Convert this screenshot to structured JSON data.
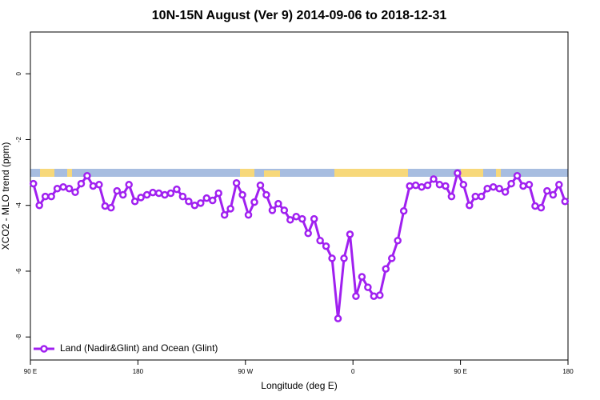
{
  "chart_data": {
    "type": "line",
    "title": "10N-15N August (Ver 9)   2014-09-06 to 2018-12-31",
    "x_label": "Longitude (deg E)",
    "y_label": "XCO2 - MLO trend (ppm)",
    "x": [
      92.5,
      97.5,
      102.5,
      107.5,
      112.5,
      117.5,
      122.5,
      127.5,
      132.5,
      137.5,
      142.5,
      147.5,
      152.5,
      157.5,
      162.5,
      167.5,
      172.5,
      177.5,
      182.5,
      187.5,
      192.5,
      197.5,
      202.5,
      207.5,
      212.5,
      217.5,
      222.5,
      227.5,
      232.5,
      237.5,
      242.5,
      247.5,
      252.5,
      257.5,
      262.5,
      267.5,
      272.5,
      277.5,
      282.5,
      287.5,
      292.5,
      297.5,
      302.5,
      307.5,
      312.5,
      317.5,
      322.5,
      327.5,
      332.5,
      337.5,
      342.5,
      347.5,
      352.5,
      357.5,
      362.5,
      367.5,
      372.5,
      377.5,
      382.5,
      387.5,
      392.5,
      397.5,
      402.5,
      407.5,
      412.5,
      417.5,
      422.5,
      427.5,
      432.5,
      437.5,
      442.5,
      447.5,
      452.5,
      457.5,
      462.5,
      467.5,
      472.5,
      477.5,
      482.5,
      487.5,
      492.5,
      497.5,
      502.5,
      507.5,
      512.5,
      517.5,
      522.5,
      527.5,
      532.5,
      537.5
    ],
    "series": [
      {
        "name": "Land (Nadir&Glint) and Ocean (Glint)",
        "color": "#a020f0",
        "values": [
          -3.34,
          -4.0,
          -3.73,
          -3.73,
          -3.49,
          -3.44,
          -3.49,
          -3.6,
          -3.34,
          -3.1,
          -3.41,
          -3.37,
          -4.02,
          -4.07,
          -3.56,
          -3.68,
          -3.37,
          -3.88,
          -3.76,
          -3.68,
          -3.61,
          -3.63,
          -3.68,
          -3.63,
          -3.51,
          -3.73,
          -3.88,
          -4.0,
          -3.93,
          -3.78,
          -3.85,
          -3.63,
          -4.29,
          -4.1,
          -3.32,
          -3.68,
          -4.29,
          -3.9,
          -3.39,
          -3.68,
          -4.15,
          -3.95,
          -4.15,
          -4.44,
          -4.34,
          -4.41,
          -4.85,
          -4.41,
          -5.07,
          -5.24,
          -5.61,
          -7.44,
          -5.61,
          -4.88,
          -6.76,
          -6.17,
          -6.49,
          -6.76,
          -6.73,
          -5.93,
          -5.61,
          -5.07,
          -4.17,
          -3.41,
          -3.39,
          -3.44,
          -3.39,
          -3.2,
          -3.37,
          -3.41,
          -3.73,
          -3.02,
          -3.37,
          -4.0,
          -3.73,
          -3.73,
          -3.49,
          -3.44,
          -3.49,
          -3.59,
          -3.34,
          -3.1,
          -3.41,
          -3.37,
          -4.02,
          -4.07,
          -3.56,
          -3.68,
          -3.37,
          -3.88
        ]
      }
    ],
    "xlim": [
      90,
      540
    ],
    "xticks": [
      {
        "value": 90,
        "label": "90 E"
      },
      {
        "value": 180,
        "label": "180"
      },
      {
        "value": 270,
        "label": "90 W"
      },
      {
        "value": 360,
        "label": "0"
      },
      {
        "value": 450,
        "label": "90 E"
      },
      {
        "value": 540,
        "label": "180"
      }
    ],
    "ylim": [
      -8.7,
      1.27
    ],
    "yticks": [
      -8,
      -6,
      -4,
      -2,
      0
    ],
    "grid": false,
    "legend": "bottomleft"
  }
}
